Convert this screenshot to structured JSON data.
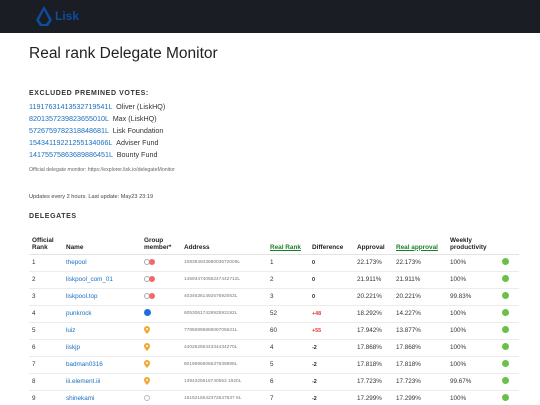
{
  "header": {
    "logo_text": "Lisk"
  },
  "page_title": "Real rank Delegate Monitor",
  "excluded": {
    "label": "EXCLUDED PREMINED VOTES:",
    "items": [
      {
        "address": "11917631413532719541L",
        "owner": "Oliver (LiskHQ)"
      },
      {
        "address": "8201357239823655010L",
        "owner": "Max (LiskHQ)"
      },
      {
        "address": "5726759782318848681L",
        "owner": "Lisk Foundation"
      },
      {
        "address": "15434119221255134066L",
        "owner": "Adviser Fund"
      },
      {
        "address": "14175575863689886451L",
        "owner": "Bounty Fund"
      }
    ],
    "note": "Official delegate monitor: https://explorer.lisk.io/delegateMonitor"
  },
  "updates_text": "Updates every 2 hours. Last update: May23 23:19",
  "delegates": {
    "label": "DELEGATES",
    "columns": {
      "official_rank": "Official Rank",
      "name": "Name",
      "group": "Group member*",
      "address": "Address",
      "real_rank": "Real Rank",
      "difference": "Difference",
      "approval": "Approval",
      "real_approval": "Real approval",
      "weekly": "Weekly productivity"
    },
    "rows": [
      {
        "rank": "1",
        "name": "thepool",
        "group": "pair",
        "address": "10839494368003672009L",
        "real_rank": "1",
        "diff": "0",
        "diff_type": "zero",
        "approval": "22.173%",
        "real_approval": "22.173%",
        "weekly": "100%"
      },
      {
        "rank": "2",
        "name": "liskpool_com_01",
        "group": "pair",
        "address": "14593474056247442712L",
        "real_rank": "2",
        "diff": "0",
        "diff_type": "zero",
        "approval": "21.911%",
        "real_approval": "21.911%",
        "weekly": "100%"
      },
      {
        "rank": "3",
        "name": "liskpool.top",
        "group": "pair",
        "address": "4034636149257692063L",
        "real_rank": "3",
        "diff": "0",
        "diff_type": "zero",
        "approval": "20.221%",
        "real_approval": "20.221%",
        "weekly": "99.83%"
      },
      {
        "rank": "4",
        "name": "punkrock",
        "group": "blue",
        "address": "6053061742992593192L",
        "real_rank": "52",
        "diff": "+48",
        "diff_type": "pos",
        "approval": "18.292%",
        "real_approval": "14.227%",
        "weekly": "100%"
      },
      {
        "rank": "5",
        "name": "luiz",
        "group": "pin",
        "address": "7785089688506705621L",
        "real_rank": "60",
        "diff": "+55",
        "diff_type": "pos",
        "approval": "17.942%",
        "real_approval": "13.877%",
        "weekly": "100%"
      },
      {
        "rank": "6",
        "name": "liskjp",
        "group": "pin",
        "address": "4402625644334434270L",
        "real_rank": "4",
        "diff": "-2",
        "diff_type": "neg",
        "approval": "17.868%",
        "real_approval": "17.868%",
        "weekly": "100%"
      },
      {
        "rank": "7",
        "name": "badman0316",
        "group": "pin",
        "address": "8019596606637939988L",
        "real_rank": "5",
        "diff": "-2",
        "diff_type": "neg",
        "approval": "17.818%",
        "real_approval": "17.818%",
        "weekly": "100%"
      },
      {
        "rank": "8",
        "name": "iii.element.iii",
        "group": "pin",
        "address": "1394325616740553 1920L",
        "real_rank": "6",
        "diff": "-2",
        "diff_type": "neg",
        "approval": "17.723%",
        "real_approval": "17.723%",
        "weekly": "99.67%"
      },
      {
        "rank": "9",
        "name": "shinekami",
        "group": "grey",
        "address": "1615215542372647637 6L",
        "real_rank": "7",
        "diff": "-2",
        "diff_type": "neg",
        "approval": "17.299%",
        "real_approval": "17.299%",
        "weekly": "100%"
      }
    ]
  }
}
